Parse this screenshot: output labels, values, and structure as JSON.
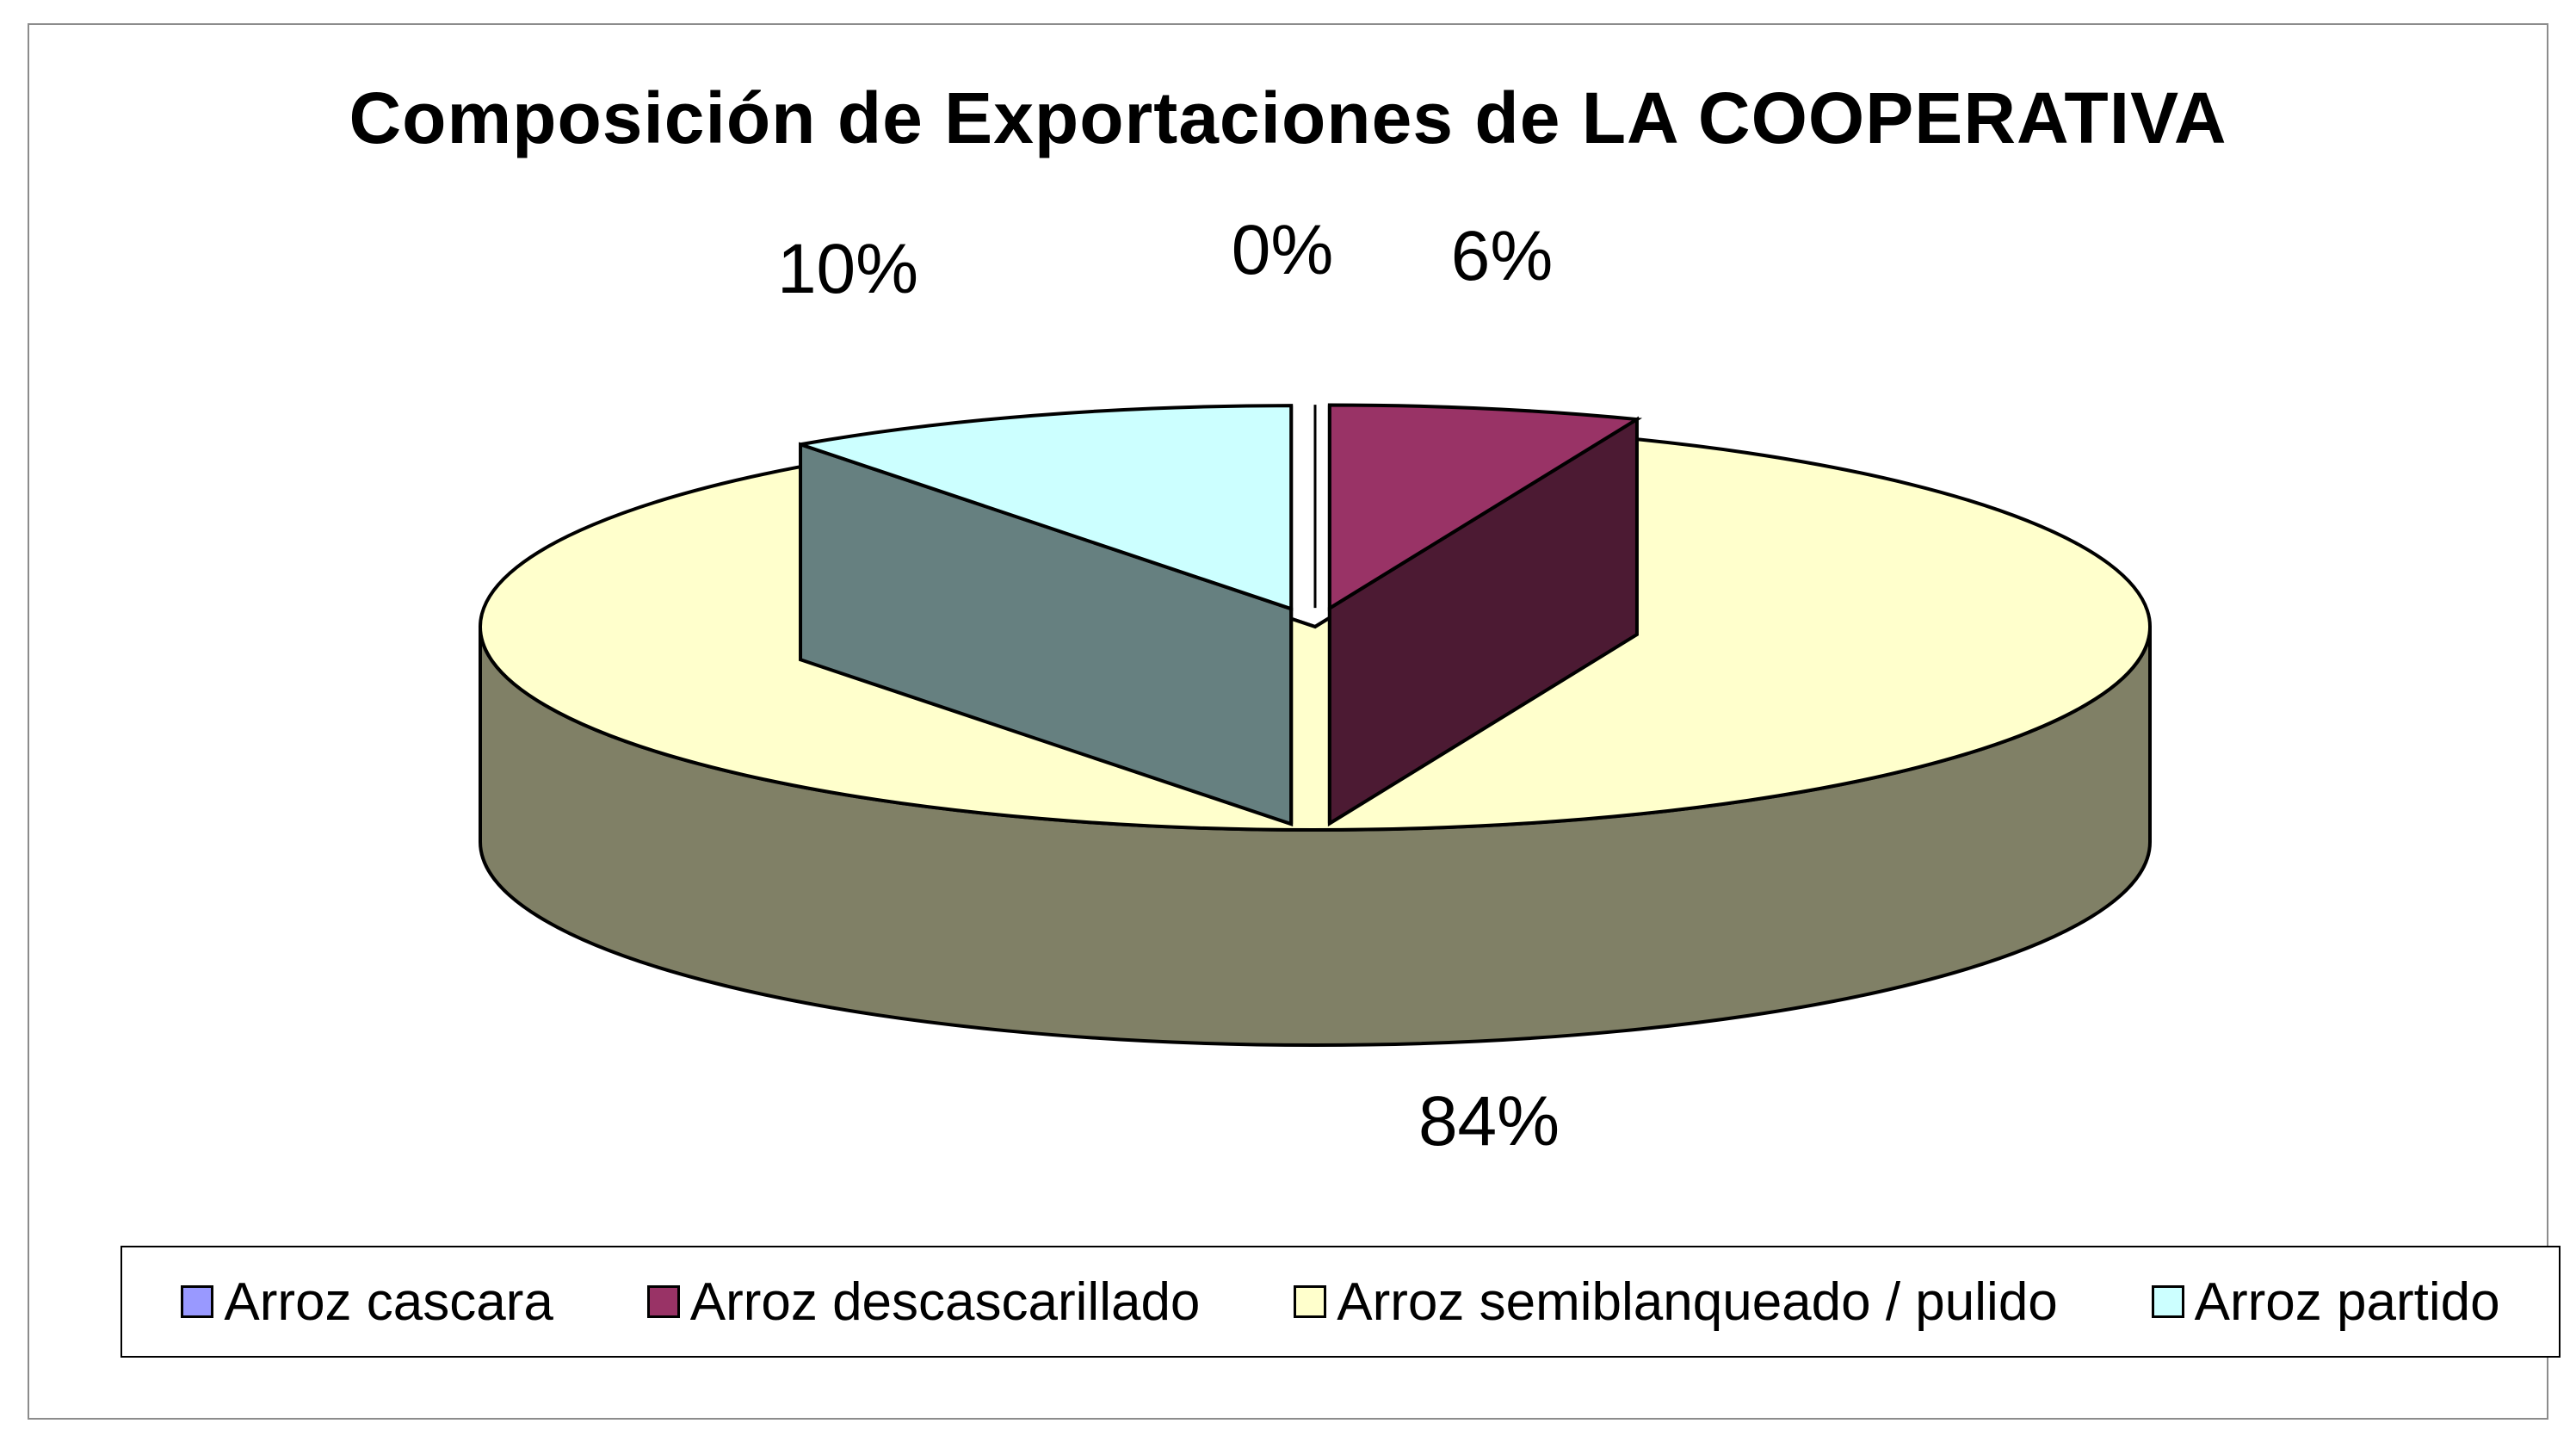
{
  "chart_data": {
    "type": "pie",
    "title": "Composición de Exportaciones de LA COOPERATIVA",
    "categories": [
      "Arroz cascara",
      "Arroz descascarillado",
      "Arroz semiblanqueado / pulido",
      "Arroz partido"
    ],
    "values": [
      0,
      6,
      84,
      10
    ],
    "data_labels": [
      "0%",
      "6%",
      "84%",
      "10%"
    ],
    "colors": [
      "#9999ff",
      "#993366",
      "#ffffcc",
      "#ccffff"
    ],
    "side_colors": [
      "#4d4d80",
      "#4c1a33",
      "#808066",
      "#668080"
    ],
    "legend_position": "bottom",
    "three_d": true,
    "exploded": true
  }
}
